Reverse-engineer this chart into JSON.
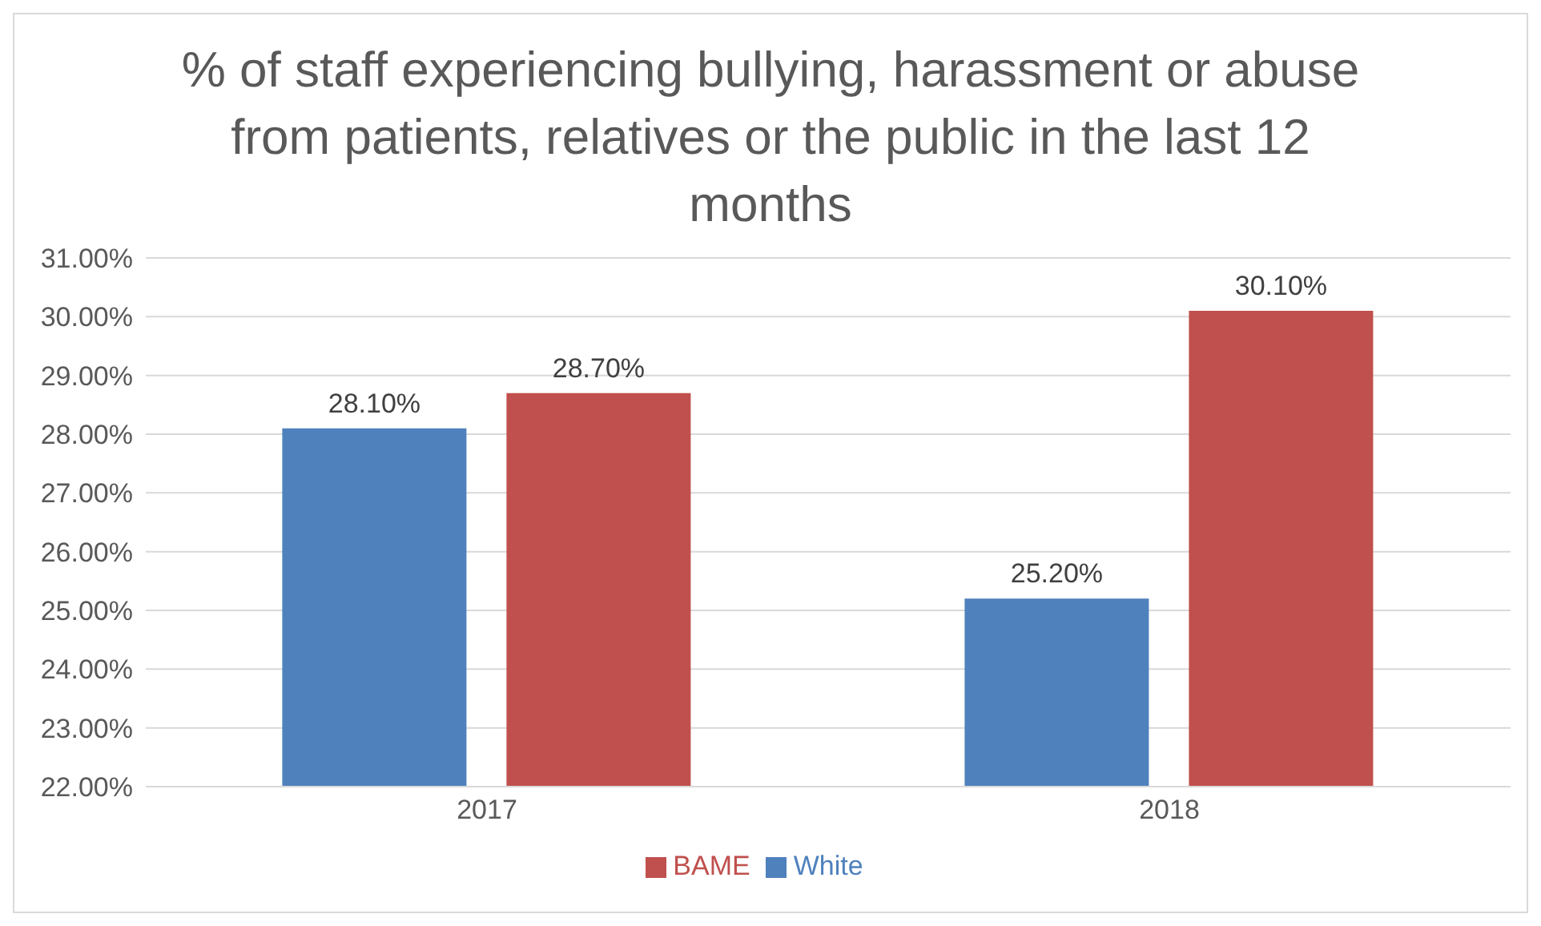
{
  "chart_data": {
    "type": "bar",
    "title": "% of staff experiencing bullying, harassment or abuse from patients, relatives or the public in the last 12 months",
    "categories": [
      "2017",
      "2018"
    ],
    "series": [
      {
        "name": "White",
        "color": "#4f81bd",
        "values": [
          28.1,
          25.2
        ],
        "value_labels": [
          "28.10%",
          "25.20%"
        ]
      },
      {
        "name": "BAME",
        "color": "#c0504d",
        "values": [
          28.7,
          30.1
        ],
        "value_labels": [
          "28.70%",
          "30.10%"
        ]
      }
    ],
    "ylim": [
      22,
      31
    ],
    "yticks": [
      {
        "value": 22,
        "label": "22.00%"
      },
      {
        "value": 23,
        "label": "23.00%"
      },
      {
        "value": 24,
        "label": "24.00%"
      },
      {
        "value": 25,
        "label": "25.00%"
      },
      {
        "value": 26,
        "label": "26.00%"
      },
      {
        "value": 27,
        "label": "27.00%"
      },
      {
        "value": 28,
        "label": "28.00%"
      },
      {
        "value": 29,
        "label": "29.00%"
      },
      {
        "value": 30,
        "label": "30.00%"
      },
      {
        "value": 31,
        "label": "31.00%"
      }
    ],
    "grid": "y",
    "legend": "bottom"
  }
}
